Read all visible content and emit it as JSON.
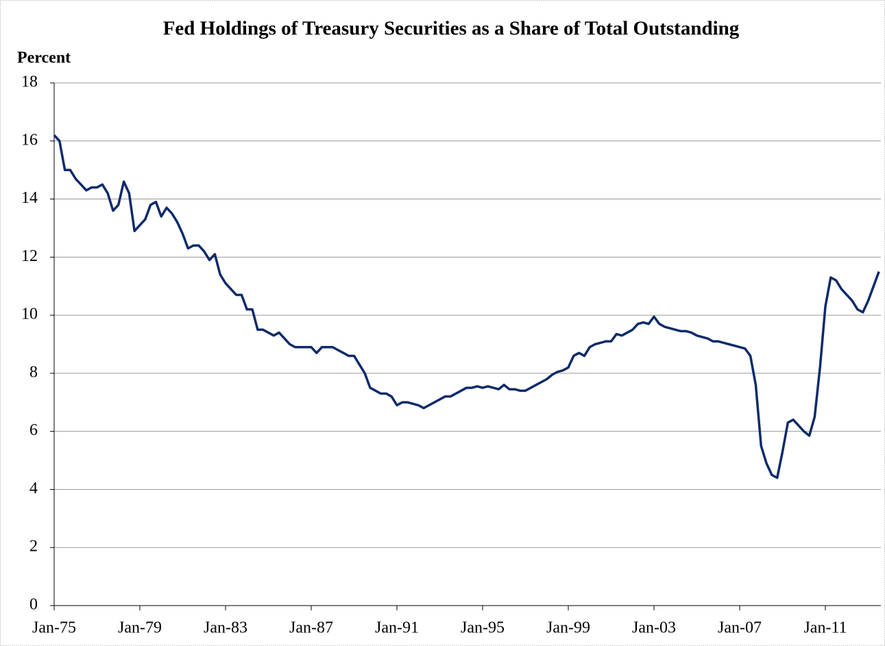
{
  "chart_data": {
    "type": "line",
    "title": "Fed Holdings of Treasury Securities as a Share of Total Outstanding",
    "y_label": "Percent",
    "ylim": [
      0,
      18
    ],
    "yticks": [
      0,
      2,
      4,
      6,
      8,
      10,
      12,
      14,
      16,
      18
    ],
    "grid": true,
    "categories": [
      "Jan-75",
      null,
      null,
      null,
      null,
      null,
      null,
      null,
      null,
      null,
      null,
      null,
      null,
      null,
      null,
      null,
      "Jan-79",
      null,
      null,
      null,
      null,
      null,
      null,
      null,
      null,
      null,
      null,
      null,
      null,
      null,
      null,
      null,
      "Jan-83",
      null,
      null,
      null,
      null,
      null,
      null,
      null,
      null,
      null,
      null,
      null,
      null,
      null,
      null,
      null,
      "Jan-87",
      null,
      null,
      null,
      null,
      null,
      null,
      null,
      null,
      null,
      null,
      null,
      null,
      null,
      null,
      null,
      "Jan-91",
      null,
      null,
      null,
      null,
      null,
      null,
      null,
      null,
      null,
      null,
      null,
      null,
      null,
      null,
      null,
      "Jan-95",
      null,
      null,
      null,
      null,
      null,
      null,
      null,
      null,
      null,
      null,
      null,
      null,
      null,
      null,
      null,
      "Jan-99",
      null,
      null,
      null,
      null,
      null,
      null,
      null,
      null,
      null,
      null,
      null,
      null,
      null,
      null,
      null,
      "Jan-03",
      null,
      null,
      null,
      null,
      null,
      null,
      null,
      null,
      null,
      null,
      null,
      null,
      null,
      null,
      null,
      "Jan-07",
      null,
      null,
      null,
      null,
      null,
      null,
      null,
      null,
      null,
      null,
      null,
      null,
      null,
      null,
      null,
      "Jan-11",
      null,
      null,
      null,
      null,
      null,
      null,
      null,
      null,
      null,
      null
    ],
    "series": [
      {
        "color": "#0d2a6b",
        "values": [
          16.2,
          16.0,
          15.0,
          15.0,
          14.7,
          14.5,
          14.3,
          14.4,
          14.4,
          14.5,
          14.2,
          13.6,
          13.8,
          14.6,
          14.2,
          12.9,
          13.1,
          13.3,
          13.8,
          13.9,
          13.4,
          13.7,
          13.5,
          13.2,
          12.8,
          12.3,
          12.4,
          12.4,
          12.2,
          11.9,
          12.1,
          11.4,
          11.1,
          10.9,
          10.7,
          10.7,
          10.2,
          10.2,
          9.5,
          9.5,
          9.4,
          9.3,
          9.4,
          9.2,
          9.0,
          8.9,
          8.9,
          8.9,
          8.9,
          8.7,
          8.9,
          8.9,
          8.9,
          8.8,
          8.7,
          8.6,
          8.6,
          8.3,
          8.0,
          7.5,
          7.4,
          7.3,
          7.3,
          7.2,
          6.9,
          7.0,
          7.0,
          6.95,
          6.9,
          6.8,
          6.9,
          7.0,
          7.1,
          7.2,
          7.2,
          7.3,
          7.4,
          7.5,
          7.5,
          7.55,
          7.5,
          7.55,
          7.5,
          7.45,
          7.6,
          7.45,
          7.45,
          7.4,
          7.4,
          7.5,
          7.6,
          7.7,
          7.8,
          7.95,
          8.05,
          8.1,
          8.2,
          8.6,
          8.7,
          8.6,
          8.9,
          9.0,
          9.05,
          9.1,
          9.1,
          9.35,
          9.3,
          9.4,
          9.5,
          9.7,
          9.75,
          9.7,
          9.95,
          9.7,
          9.6,
          9.55,
          9.5,
          9.45,
          9.45,
          9.4,
          9.3,
          9.25,
          9.2,
          9.1,
          9.1,
          9.05,
          9.0,
          8.95,
          8.9,
          8.85,
          8.6,
          7.6,
          5.5,
          4.9,
          4.5,
          4.4,
          5.3,
          6.3,
          6.4,
          6.2,
          6.0,
          5.85,
          6.5,
          8.2,
          10.3,
          11.3,
          11.2,
          10.9,
          10.7,
          10.5,
          10.2,
          10.1,
          10.5,
          11.0,
          11.5
        ]
      }
    ]
  }
}
